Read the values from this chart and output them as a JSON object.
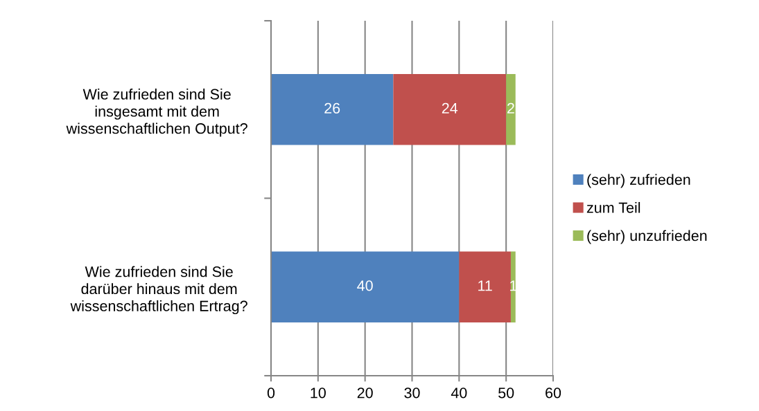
{
  "chart_data": {
    "type": "bar",
    "orientation": "horizontal",
    "stacked": true,
    "categories": [
      "Wie zufrieden sind Sie\ninsgesamt mit dem\nwissenschaftlichen Output?",
      "Wie zufrieden sind Sie\ndarüber hinaus mit dem\nwissenschaftlichen Ertrag?"
    ],
    "series": [
      {
        "name": "(sehr) zufrieden",
        "color": "#4f81bd",
        "values": [
          26,
          40
        ]
      },
      {
        "name": "zum Teil",
        "color": "#c0504d",
        "values": [
          24,
          11
        ]
      },
      {
        "name": "(sehr) unzufrieden",
        "color": "#9bbb59",
        "values": [
          2,
          1
        ]
      }
    ],
    "xlim": [
      0,
      60
    ],
    "xticks": [
      0,
      10,
      20,
      30,
      40,
      50,
      60
    ],
    "grid": "x",
    "legend": "right",
    "data_labels": true
  }
}
